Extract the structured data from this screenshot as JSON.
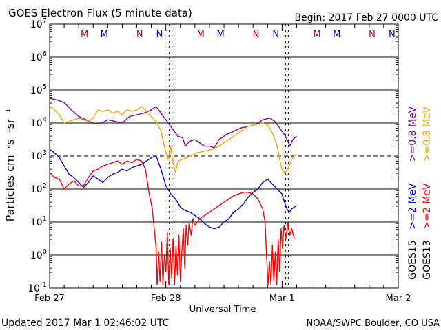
{
  "chart_data": {
    "type": "line",
    "title": "GOES Electron Flux (5 minute data)",
    "begin_label": "Begin: 2017 Feb 27 0000 UTC",
    "xlabel": "Universal Time",
    "ylabel": "Particles cm⁻²s⁻¹sr⁻¹",
    "updated": "Updated 2017 Mar  1 02:46:02 UTC",
    "credit": "NOAA/SWPC Boulder, CO USA",
    "yscale": "log",
    "ylim_exp": [
      -1,
      7
    ],
    "y_tick_exps": [
      -1,
      0,
      1,
      2,
      3,
      4,
      5,
      6,
      7
    ],
    "xlim_hours": [
      0,
      72
    ],
    "x_ticks": [
      {
        "h": 0,
        "label": "Feb 27"
      },
      {
        "h": 24,
        "label": "Feb 28"
      },
      {
        "h": 48,
        "label": "Mar 1"
      },
      {
        "h": 72,
        "label": "Mar 2"
      }
    ],
    "dashed_threshold_exp": 3,
    "markers": [
      {
        "h": 7.2,
        "label": "M",
        "color": "#d00000"
      },
      {
        "h": 11.3,
        "label": "M",
        "color": "#0000c8"
      },
      {
        "h": 18.6,
        "label": "N",
        "color": "#d00000"
      },
      {
        "h": 22.7,
        "label": "N",
        "color": "#0000c8"
      },
      {
        "h": 31.2,
        "label": "M",
        "color": "#d00000"
      },
      {
        "h": 35.3,
        "label": "M",
        "color": "#0000c8"
      },
      {
        "h": 42.6,
        "label": "N",
        "color": "#d00000"
      },
      {
        "h": 46.7,
        "label": "N",
        "color": "#0000c8"
      },
      {
        "h": 55.2,
        "label": "M",
        "color": "#d00000"
      },
      {
        "h": 59.3,
        "label": "M",
        "color": "#0000c8"
      },
      {
        "h": 66.6,
        "label": "N",
        "color": "#d00000"
      },
      {
        "h": 70.7,
        "label": "N",
        "color": "#0000c8"
      }
    ],
    "eclipse_hours": [
      25.0,
      49.0
    ],
    "legend": [
      {
        "label": ">=0.8 MeV",
        "color": "#ffa500",
        "row": 1
      },
      {
        "label": ">=0.8 MeV",
        "color": "#7a00a8",
        "row": 0
      },
      {
        "label": ">=2 MeV",
        "color": "#ff0000",
        "row": 1
      },
      {
        "label": ">=2 MeV",
        "color": "#0000e0",
        "row": 0
      }
    ],
    "legend_satellites": [
      "GOES15",
      "GOES13"
    ],
    "series": [
      {
        "name": "GOES15 >=0.8 MeV",
        "color": "#7a00a8",
        "points": [
          [
            0,
            4.75
          ],
          [
            1.5,
            4.7
          ],
          [
            3,
            4.62
          ],
          [
            4.5,
            4.4
          ],
          [
            6,
            4.2
          ],
          [
            7.5,
            4.1
          ],
          [
            9,
            4.0
          ],
          [
            10.5,
            3.98
          ],
          [
            12,
            4.1
          ],
          [
            13.5,
            4.05
          ],
          [
            15,
            4.0
          ],
          [
            16.5,
            4.2
          ],
          [
            18,
            4.25
          ],
          [
            19.5,
            4.3
          ],
          [
            21,
            4.4
          ],
          [
            22,
            4.5
          ],
          [
            23,
            4.3
          ],
          [
            24.5,
            4.0
          ],
          [
            25.5,
            3.8
          ],
          [
            26.5,
            3.6
          ],
          [
            27.5,
            3.55
          ],
          [
            28,
            3.3
          ],
          [
            29,
            3.45
          ],
          [
            30,
            3.5
          ],
          [
            31,
            3.4
          ],
          [
            32,
            3.3
          ],
          [
            33,
            3.3
          ],
          [
            34,
            3.25
          ],
          [
            35,
            3.5
          ],
          [
            36.5,
            3.65
          ],
          [
            38,
            3.75
          ],
          [
            39.5,
            3.85
          ],
          [
            41,
            3.9
          ],
          [
            42.5,
            3.95
          ],
          [
            44,
            4.1
          ],
          [
            45.5,
            4.15
          ],
          [
            46.5,
            4.05
          ],
          [
            47.5,
            3.85
          ],
          [
            48.5,
            3.65
          ],
          [
            49.2,
            3.45
          ],
          [
            49.6,
            3.3
          ],
          [
            50.2,
            3.5
          ],
          [
            51,
            3.6
          ]
        ]
      },
      {
        "name": "GOES13 >=0.8 MeV",
        "color": "#ffa500",
        "points": [
          [
            0,
            4.5
          ],
          [
            1,
            4.4
          ],
          [
            2,
            4.25
          ],
          [
            3,
            4.0
          ],
          [
            4,
            4.05
          ],
          [
            5,
            4.1
          ],
          [
            6,
            4.15
          ],
          [
            7,
            4.1
          ],
          [
            8,
            4.05
          ],
          [
            9,
            4.15
          ],
          [
            10,
            4.4
          ],
          [
            11,
            4.35
          ],
          [
            12,
            4.4
          ],
          [
            13,
            4.3
          ],
          [
            14,
            4.35
          ],
          [
            15,
            4.25
          ],
          [
            16,
            4.4
          ],
          [
            17,
            4.35
          ],
          [
            18,
            4.4
          ],
          [
            19,
            4.5
          ],
          [
            20,
            4.35
          ],
          [
            21,
            4.2
          ],
          [
            22,
            4.05
          ],
          [
            23,
            3.75
          ],
          [
            24,
            3.1
          ],
          [
            24.5,
            2.9
          ],
          [
            25,
            3.3
          ],
          [
            25.5,
            2.8
          ],
          [
            26,
            2.5
          ],
          [
            26.5,
            2.85
          ],
          [
            27.5,
            2.9
          ],
          [
            29,
            3.0
          ],
          [
            30.5,
            3.1
          ],
          [
            32,
            3.15
          ],
          [
            33.5,
            3.2
          ],
          [
            35,
            3.3
          ],
          [
            36.5,
            3.45
          ],
          [
            38,
            3.6
          ],
          [
            39.5,
            3.75
          ],
          [
            41,
            3.9
          ],
          [
            42.5,
            3.95
          ],
          [
            44,
            4.0
          ],
          [
            45,
            3.95
          ],
          [
            46,
            3.7
          ],
          [
            47,
            3.3
          ],
          [
            47.5,
            2.9
          ],
          [
            48,
            2.6
          ],
          [
            48.5,
            2.5
          ],
          [
            49,
            2.55
          ],
          [
            49.5,
            2.7
          ],
          [
            50,
            2.9
          ],
          [
            50.5,
            3.0
          ],
          [
            51,
            3.05
          ]
        ]
      },
      {
        "name": "GOES15 >=2 MeV",
        "color": "#0000e0",
        "points": [
          [
            0,
            3.2
          ],
          [
            1,
            3.1
          ],
          [
            2,
            2.95
          ],
          [
            3,
            2.7
          ],
          [
            4,
            2.45
          ],
          [
            5,
            2.35
          ],
          [
            6,
            2.2
          ],
          [
            7,
            2.05
          ],
          [
            8,
            2.2
          ],
          [
            9,
            2.4
          ],
          [
            10,
            2.3
          ],
          [
            11,
            2.2
          ],
          [
            12,
            2.35
          ],
          [
            13,
            2.45
          ],
          [
            14,
            2.5
          ],
          [
            15,
            2.6
          ],
          [
            16,
            2.55
          ],
          [
            17,
            2.65
          ],
          [
            18,
            2.7
          ],
          [
            19,
            2.75
          ],
          [
            20,
            2.85
          ],
          [
            21,
            2.95
          ],
          [
            22,
            3.0
          ],
          [
            23,
            2.6
          ],
          [
            24,
            2.1
          ],
          [
            25,
            1.85
          ],
          [
            26,
            1.7
          ],
          [
            27,
            1.45
          ],
          [
            28,
            1.35
          ],
          [
            29,
            1.3
          ],
          [
            30,
            1.2
          ],
          [
            31,
            1.1
          ],
          [
            32,
            0.95
          ],
          [
            33,
            0.85
          ],
          [
            34,
            0.8
          ],
          [
            35,
            0.85
          ],
          [
            36,
            1.0
          ],
          [
            37,
            1.1
          ],
          [
            38,
            1.3
          ],
          [
            39,
            1.4
          ],
          [
            40,
            1.55
          ],
          [
            41,
            1.75
          ],
          [
            42,
            1.9
          ],
          [
            43,
            2.0
          ],
          [
            44,
            2.2
          ],
          [
            45,
            2.3
          ],
          [
            46,
            2.15
          ],
          [
            47,
            2.0
          ],
          [
            48,
            1.85
          ],
          [
            48.5,
            1.6
          ],
          [
            49,
            1.4
          ],
          [
            49.5,
            1.3
          ],
          [
            50,
            1.4
          ],
          [
            51,
            1.5
          ]
        ]
      },
      {
        "name": "GOES13 >=2 MeV",
        "color": "#ff0000",
        "points": [
          [
            0,
            2.5
          ],
          [
            1,
            2.35
          ],
          [
            2,
            2.3
          ],
          [
            3,
            2.0
          ],
          [
            4,
            2.15
          ],
          [
            5,
            2.25
          ],
          [
            6,
            2.1
          ],
          [
            7,
            2.1
          ],
          [
            8,
            2.35
          ],
          [
            9,
            2.55
          ],
          [
            10,
            2.6
          ],
          [
            11,
            2.7
          ],
          [
            12,
            2.75
          ],
          [
            13,
            2.8
          ],
          [
            14,
            2.85
          ],
          [
            15,
            2.75
          ],
          [
            16,
            2.85
          ],
          [
            17,
            2.8
          ],
          [
            18,
            2.9
          ],
          [
            19,
            2.85
          ],
          [
            19.8,
            2.6
          ],
          [
            20.5,
            1.9
          ],
          [
            21.2,
            1.4
          ],
          [
            21.6,
            0.8
          ],
          [
            22,
            0.2
          ],
          [
            22.2,
            -0.9
          ],
          [
            22.5,
            0.1
          ],
          [
            22.8,
            -0.8
          ],
          [
            23.1,
            0.4
          ],
          [
            23.4,
            -0.9
          ],
          [
            23.7,
            0.0
          ],
          [
            24,
            -0.5
          ],
          [
            24.3,
            0.7
          ],
          [
            24.6,
            -0.9
          ],
          [
            24.9,
            0.2
          ],
          [
            25.2,
            -0.7
          ],
          [
            25.5,
            0.5
          ],
          [
            25.8,
            -0.9
          ],
          [
            26.1,
            0.3
          ],
          [
            26.4,
            -0.6
          ],
          [
            26.7,
            0.6
          ],
          [
            27,
            -0.8
          ],
          [
            27.3,
            0.1
          ],
          [
            27.6,
            0.8
          ],
          [
            27.9,
            -0.4
          ],
          [
            28.2,
            0.9
          ],
          [
            28.5,
            0.3
          ],
          [
            28.8,
            1.0
          ],
          [
            29.2,
            0.6
          ],
          [
            29.6,
            1.1
          ],
          [
            30,
            0.9
          ],
          [
            31,
            1.1
          ],
          [
            32,
            1.2
          ],
          [
            33,
            1.3
          ],
          [
            34,
            1.4
          ],
          [
            35,
            1.5
          ],
          [
            36,
            1.6
          ],
          [
            37,
            1.7
          ],
          [
            38,
            1.8
          ],
          [
            39,
            1.85
          ],
          [
            40,
            1.9
          ],
          [
            41,
            1.9
          ],
          [
            42,
            1.85
          ],
          [
            43,
            1.7
          ],
          [
            44,
            1.4
          ],
          [
            44.5,
            1.0
          ],
          [
            44.8,
            0.0
          ],
          [
            45.1,
            -0.9
          ],
          [
            45.4,
            -0.2
          ],
          [
            45.7,
            -0.9
          ],
          [
            46,
            0.3
          ],
          [
            46.3,
            -0.8
          ],
          [
            46.6,
            0.1
          ],
          [
            46.9,
            -0.9
          ],
          [
            47.2,
            0.5
          ],
          [
            47.5,
            -0.5
          ],
          [
            47.8,
            0.8
          ],
          [
            48.1,
            0.2
          ],
          [
            48.4,
            0.9
          ],
          [
            48.8,
            0.5
          ],
          [
            49.2,
            1.0
          ],
          [
            49.6,
            0.6
          ],
          [
            50,
            0.8
          ],
          [
            50.5,
            0.5
          ]
        ]
      }
    ]
  }
}
